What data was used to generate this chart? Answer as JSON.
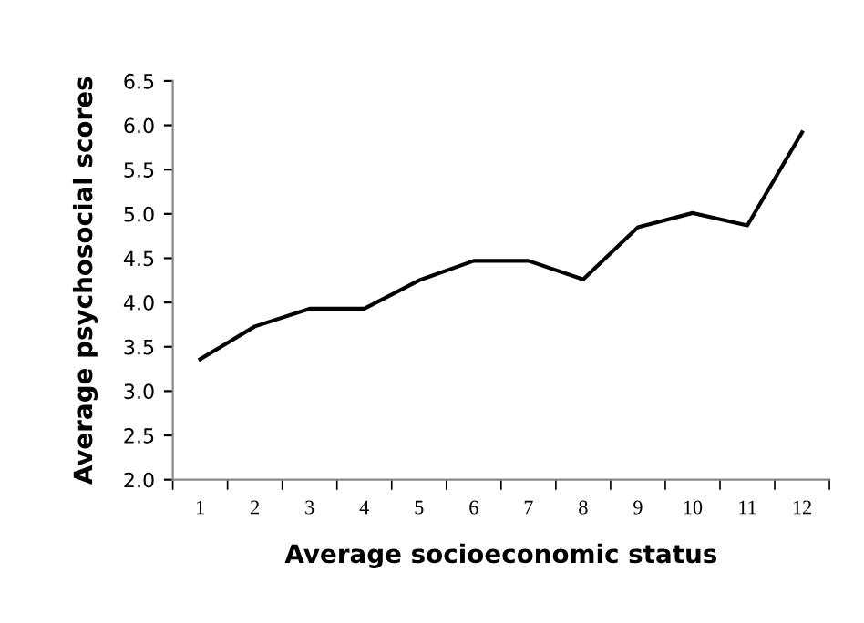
{
  "chart_data": {
    "type": "line",
    "xlabel": "Average socioeconomic status",
    "ylabel": "Average psychosocial scores",
    "categories": [
      "1",
      "2",
      "3",
      "4",
      "5",
      "6",
      "7",
      "8",
      "9",
      "10",
      "11",
      "12"
    ],
    "series": [
      {
        "color": "#000000",
        "values": [
          3.36,
          3.73,
          3.93,
          3.93,
          4.25,
          4.47,
          4.47,
          4.26,
          4.85,
          5.01,
          4.87,
          5.92
        ]
      }
    ],
    "ylim": [
      2.0,
      6.5
    ],
    "yticks": [
      {
        "value": 2.0,
        "label": "2.0"
      },
      {
        "value": 2.5,
        "label": "2.5"
      },
      {
        "value": 3.0,
        "label": "3.0"
      },
      {
        "value": 3.5,
        "label": "3.5"
      },
      {
        "value": 4.0,
        "label": "4.0"
      },
      {
        "value": 4.5,
        "label": "4.5"
      },
      {
        "value": 5.0,
        "label": "5.0"
      },
      {
        "value": 5.5,
        "label": "5.5"
      },
      {
        "value": 6.0,
        "label": "6.0"
      },
      {
        "value": 6.5,
        "label": "6.5"
      }
    ],
    "grid": false,
    "legend": false,
    "marker": "none",
    "line_style": "solid"
  }
}
